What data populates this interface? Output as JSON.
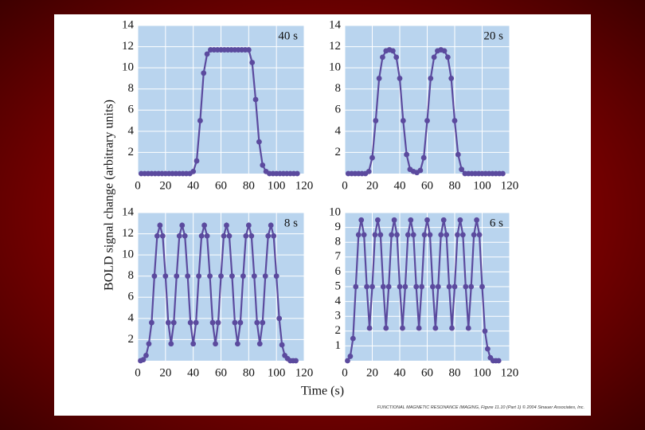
{
  "chart_data": [
    {
      "type": "line",
      "annotation": "40 s",
      "color": "#5b4a9e",
      "background": "#b9d4ee",
      "x": [
        2.5,
        5,
        7.5,
        10,
        12.5,
        15,
        17.5,
        20,
        22.5,
        25,
        27.5,
        30,
        32.5,
        35,
        37.5,
        40,
        42.5,
        45,
        47.5,
        50,
        52.5,
        55,
        57.5,
        60,
        62.5,
        65,
        67.5,
        70,
        72.5,
        75,
        77.5,
        80,
        82.5,
        85,
        87.5,
        90,
        92.5,
        95,
        97.5,
        100,
        102.5,
        105,
        107.5,
        110,
        112.5,
        115
      ],
      "values": [
        0,
        0,
        0,
        0,
        0,
        0,
        0,
        0,
        0,
        0,
        0,
        0,
        0,
        0,
        0,
        0.2,
        1.2,
        5,
        9.5,
        11.3,
        11.7,
        11.7,
        11.7,
        11.7,
        11.7,
        11.7,
        11.7,
        11.7,
        11.7,
        11.7,
        11.7,
        11.7,
        10.5,
        7,
        3,
        0.8,
        0.2,
        0,
        0,
        0,
        0,
        0,
        0,
        0,
        0,
        0
      ],
      "xlim": [
        0,
        120
      ],
      "ylim": [
        0,
        14
      ],
      "xticks": [
        0,
        20,
        40,
        60,
        80,
        100,
        120
      ],
      "yticks": [
        2,
        4,
        6,
        8,
        10,
        12,
        14
      ],
      "grid": true
    },
    {
      "type": "line",
      "annotation": "20 s",
      "color": "#5b4a9e",
      "background": "#b9d4ee",
      "x": [
        2.5,
        5,
        7.5,
        10,
        12.5,
        15,
        17.5,
        20,
        22.5,
        25,
        27.5,
        30,
        32.5,
        35,
        37.5,
        40,
        42.5,
        45,
        47.5,
        50,
        52.5,
        55,
        57.5,
        60,
        62.5,
        65,
        67.5,
        70,
        72.5,
        75,
        77.5,
        80,
        82.5,
        85,
        87.5,
        90,
        92.5,
        95,
        97.5,
        100,
        102.5,
        105,
        107.5,
        110,
        112.5,
        115
      ],
      "values": [
        0,
        0,
        0,
        0,
        0,
        0,
        0.2,
        1.5,
        5,
        9,
        11,
        11.6,
        11.7,
        11.6,
        11,
        9,
        5,
        1.8,
        0.4,
        0.2,
        0.1,
        0.3,
        1.5,
        5,
        9,
        11,
        11.6,
        11.7,
        11.6,
        11,
        9,
        5,
        1.8,
        0.4,
        0,
        0,
        0,
        0,
        0,
        0,
        0,
        0,
        0,
        0,
        0,
        0
      ],
      "xlim": [
        0,
        120
      ],
      "ylim": [
        0,
        14
      ],
      "xticks": [
        0,
        20,
        40,
        60,
        80,
        100,
        120
      ],
      "yticks": [
        2,
        4,
        6,
        8,
        10,
        12,
        14
      ],
      "grid": true
    },
    {
      "type": "line",
      "annotation": "8 s",
      "color": "#5b4a9e",
      "background": "#b9d4ee",
      "x": [
        2,
        4,
        6,
        8,
        10,
        12,
        14,
        16,
        18,
        20,
        22,
        24,
        26,
        28,
        30,
        32,
        34,
        36,
        38,
        40,
        42,
        44,
        46,
        48,
        50,
        52,
        54,
        56,
        58,
        60,
        62,
        64,
        66,
        68,
        70,
        72,
        74,
        76,
        78,
        80,
        82,
        84,
        86,
        88,
        90,
        92,
        94,
        96,
        98,
        100,
        102,
        104,
        106,
        108,
        110,
        112,
        114
      ],
      "values": [
        0,
        0.1,
        0.5,
        1.6,
        3.6,
        8,
        11.8,
        12.8,
        11.8,
        8,
        3.6,
        1.6,
        3.6,
        8,
        11.8,
        12.8,
        11.8,
        8,
        3.6,
        1.6,
        3.6,
        8,
        11.8,
        12.8,
        11.8,
        8,
        3.6,
        1.6,
        3.6,
        8,
        11.8,
        12.8,
        11.8,
        8,
        3.6,
        1.6,
        3.6,
        8,
        11.8,
        12.8,
        11.8,
        8,
        3.6,
        1.6,
        3.6,
        8,
        11.8,
        12.8,
        11.8,
        8,
        4,
        1.5,
        0.5,
        0.2,
        0,
        0,
        0
      ],
      "xlim": [
        0,
        120
      ],
      "ylim": [
        0,
        14
      ],
      "xticks": [
        0,
        20,
        40,
        60,
        80,
        100,
        120
      ],
      "yticks": [
        2,
        4,
        6,
        8,
        10,
        12,
        14
      ],
      "grid": true
    },
    {
      "type": "line",
      "annotation": "6 s",
      "color": "#5b4a9e",
      "background": "#b9d4ee",
      "x": [
        2,
        4,
        6,
        8,
        10,
        12,
        14,
        16,
        18,
        20,
        22,
        24,
        26,
        28,
        30,
        32,
        34,
        36,
        38,
        40,
        42,
        44,
        46,
        48,
        50,
        52,
        54,
        56,
        58,
        60,
        62,
        64,
        66,
        68,
        70,
        72,
        74,
        76,
        78,
        80,
        82,
        84,
        86,
        88,
        90,
        92,
        94,
        96,
        98,
        100,
        102,
        104,
        106,
        108,
        110,
        112
      ],
      "values": [
        0,
        0.3,
        1.5,
        5,
        8.5,
        9.5,
        8.5,
        5,
        2.2,
        5,
        8.5,
        9.5,
        8.5,
        5,
        2.2,
        5,
        8.5,
        9.5,
        8.5,
        5,
        2.2,
        5,
        8.5,
        9.5,
        8.5,
        5,
        2.2,
        5,
        8.5,
        9.5,
        8.5,
        5,
        2.2,
        5,
        8.5,
        9.5,
        8.5,
        5,
        2.2,
        5,
        8.5,
        9.5,
        8.5,
        5,
        2.2,
        5,
        8.5,
        9.5,
        8.5,
        5,
        2,
        0.8,
        0.2,
        0,
        0,
        0
      ],
      "xlim": [
        0,
        120
      ],
      "ylim": [
        0,
        10
      ],
      "xticks": [
        0,
        20,
        40,
        60,
        80,
        100,
        120
      ],
      "yticks": [
        1,
        2,
        3,
        4,
        5,
        6,
        7,
        8,
        9,
        10
      ],
      "grid": true
    }
  ],
  "ylabel": "BOLD signal change (arbitrary units)",
  "xlabel": "Time (s)",
  "credit": "FUNCTIONAL MAGNETIC RESONANCE IMAGING, Figure 11.10 (Part 1)  © 2004 Sinauer Associates, Inc."
}
